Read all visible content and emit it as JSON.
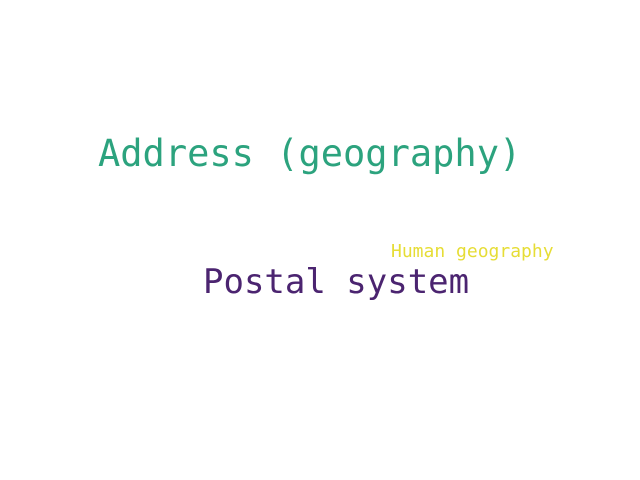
{
  "words": [
    {
      "text": "Address (geography)",
      "color": "#2ca37e"
    },
    {
      "text": "Postal system",
      "color": "#4b2470"
    },
    {
      "text": "Human geography",
      "color": "#e6dd36"
    }
  ]
}
